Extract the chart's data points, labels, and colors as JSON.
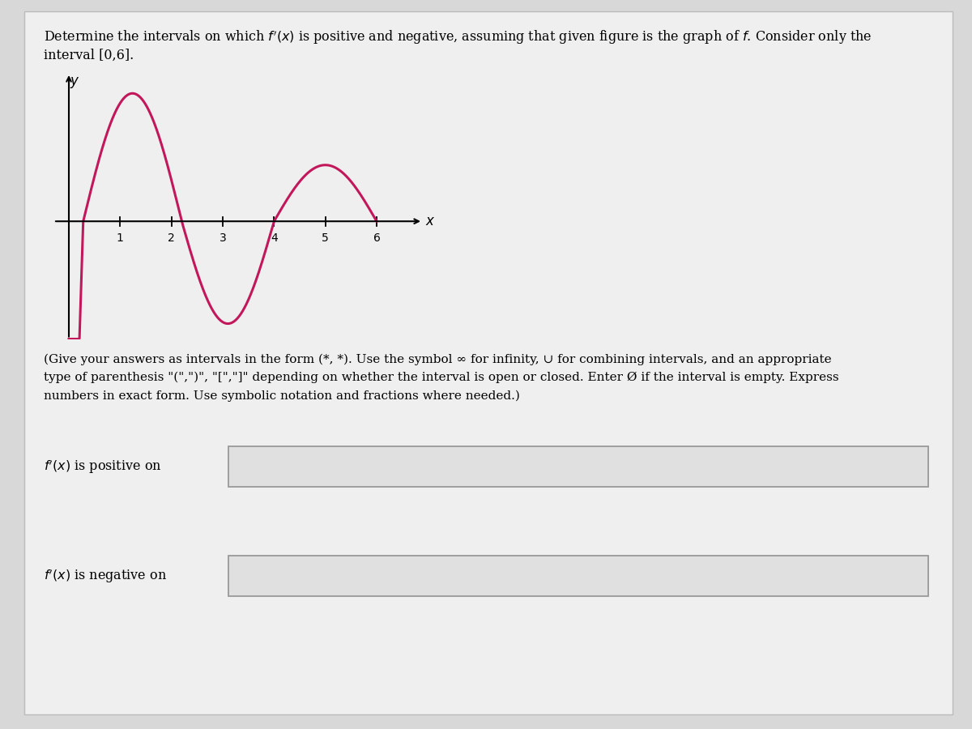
{
  "curve_color": "#c2185b",
  "axis_color": "#000000",
  "box_fill_color": "#e0e0e0",
  "box_edge_color": "#999999",
  "text_color": "#000000",
  "page_bg": "#d8d8d8",
  "content_bg": "#efefef",
  "x_ticks": [
    1,
    2,
    3,
    4,
    5,
    6
  ],
  "graph_xlim": [
    -0.3,
    6.9
  ],
  "graph_ylim": [
    -2.3,
    2.9
  ],
  "zero_crossings": [
    0.28,
    2.2,
    4.0,
    6.0
  ],
  "amplitudes": [
    2.5,
    -2.0,
    1.1
  ],
  "pre_zero_scale": 2.5
}
